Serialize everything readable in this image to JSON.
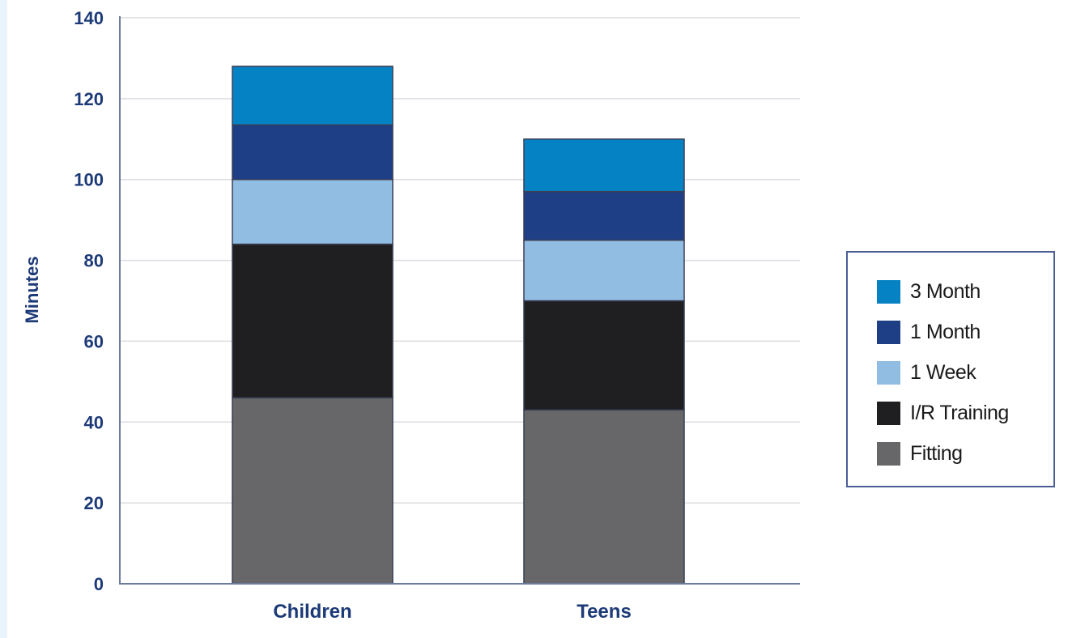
{
  "chart_data": {
    "type": "bar",
    "stacked": true,
    "categories": [
      "Children",
      "Teens"
    ],
    "series": [
      {
        "name": "Fitting",
        "values": [
          46,
          43
        ],
        "color": "#676769"
      },
      {
        "name": "I/R Training",
        "values": [
          38,
          27
        ],
        "color": "#1f1f21"
      },
      {
        "name": "1 Week",
        "values": [
          16,
          15
        ],
        "color": "#92bde3"
      },
      {
        "name": "1 Month",
        "values": [
          13.5,
          12
        ],
        "color": "#1e3f85"
      },
      {
        "name": "3 Month",
        "values": [
          14.5,
          13
        ],
        "color": "#0582c4"
      }
    ],
    "title": "",
    "xlabel": "",
    "ylabel": "Minutes",
    "ylim": [
      0,
      140
    ],
    "yticks": [
      "0",
      "20",
      "40",
      "60",
      "80",
      "100",
      "120",
      "140"
    ],
    "grid": true,
    "legend_position": "right",
    "legend_order": [
      "3 Month",
      "1 Month",
      "1 Week",
      "I/R Training",
      "Fitting"
    ]
  }
}
